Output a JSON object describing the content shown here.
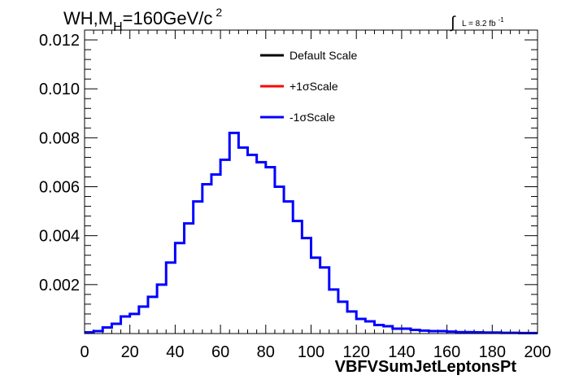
{
  "chart_data": {
    "type": "histogram-step",
    "title": {
      "main": "WH,M",
      "subscript": "H",
      "rest": "=160GeV/c",
      "superscript": "2"
    },
    "luminosity": {
      "integral_symbol": "∫",
      "text": "L = 8.2 fb",
      "superscript": "-1"
    },
    "xlabel": "VBFVSumJetLeptonsPt",
    "ylabel": "",
    "xlim": [
      0,
      200
    ],
    "ylim": [
      0,
      0.0124
    ],
    "x_ticks": [
      0,
      20,
      40,
      60,
      80,
      100,
      120,
      140,
      160,
      180,
      200
    ],
    "x_tick_labels": [
      "0",
      "20",
      "40",
      "60",
      "80",
      "100",
      "120",
      "140",
      "160",
      "180",
      "200"
    ],
    "y_ticks": [
      0.002,
      0.004,
      0.006,
      0.008,
      0.01,
      0.012
    ],
    "y_tick_labels": [
      "0.002",
      "0.004",
      "0.006",
      "0.008",
      "0.010",
      "0.012"
    ],
    "bin_width": 4,
    "legend": {
      "position": "top-center",
      "entries": [
        {
          "label": "Default Scale",
          "color": "#000000"
        },
        {
          "label": "+1σScale",
          "color": "#ff0000"
        },
        {
          "label": "-1σScale",
          "color": "#0000ff"
        }
      ]
    },
    "series": [
      {
        "name": "-1σScale",
        "color": "#0000ff",
        "bin_edges_start": 0,
        "values": [
          5e-05,
          0.0001,
          0.00025,
          0.0004,
          0.0007,
          0.0008,
          0.0011,
          0.0015,
          0.002,
          0.0029,
          0.0037,
          0.0045,
          0.0054,
          0.0061,
          0.0065,
          0.0071,
          0.0082,
          0.0076,
          0.0073,
          0.007,
          0.0068,
          0.006,
          0.0054,
          0.0046,
          0.0039,
          0.0031,
          0.0027,
          0.0018,
          0.0013,
          0.0009,
          0.0006,
          0.0005,
          0.00035,
          0.0003,
          0.0002,
          0.0002,
          0.00015,
          0.00012,
          0.0001,
          0.0001,
          8e-05,
          6e-05,
          6e-05,
          5e-05,
          4e-05,
          4e-05,
          3e-05,
          3e-05,
          2e-05,
          2e-05
        ]
      }
    ]
  }
}
